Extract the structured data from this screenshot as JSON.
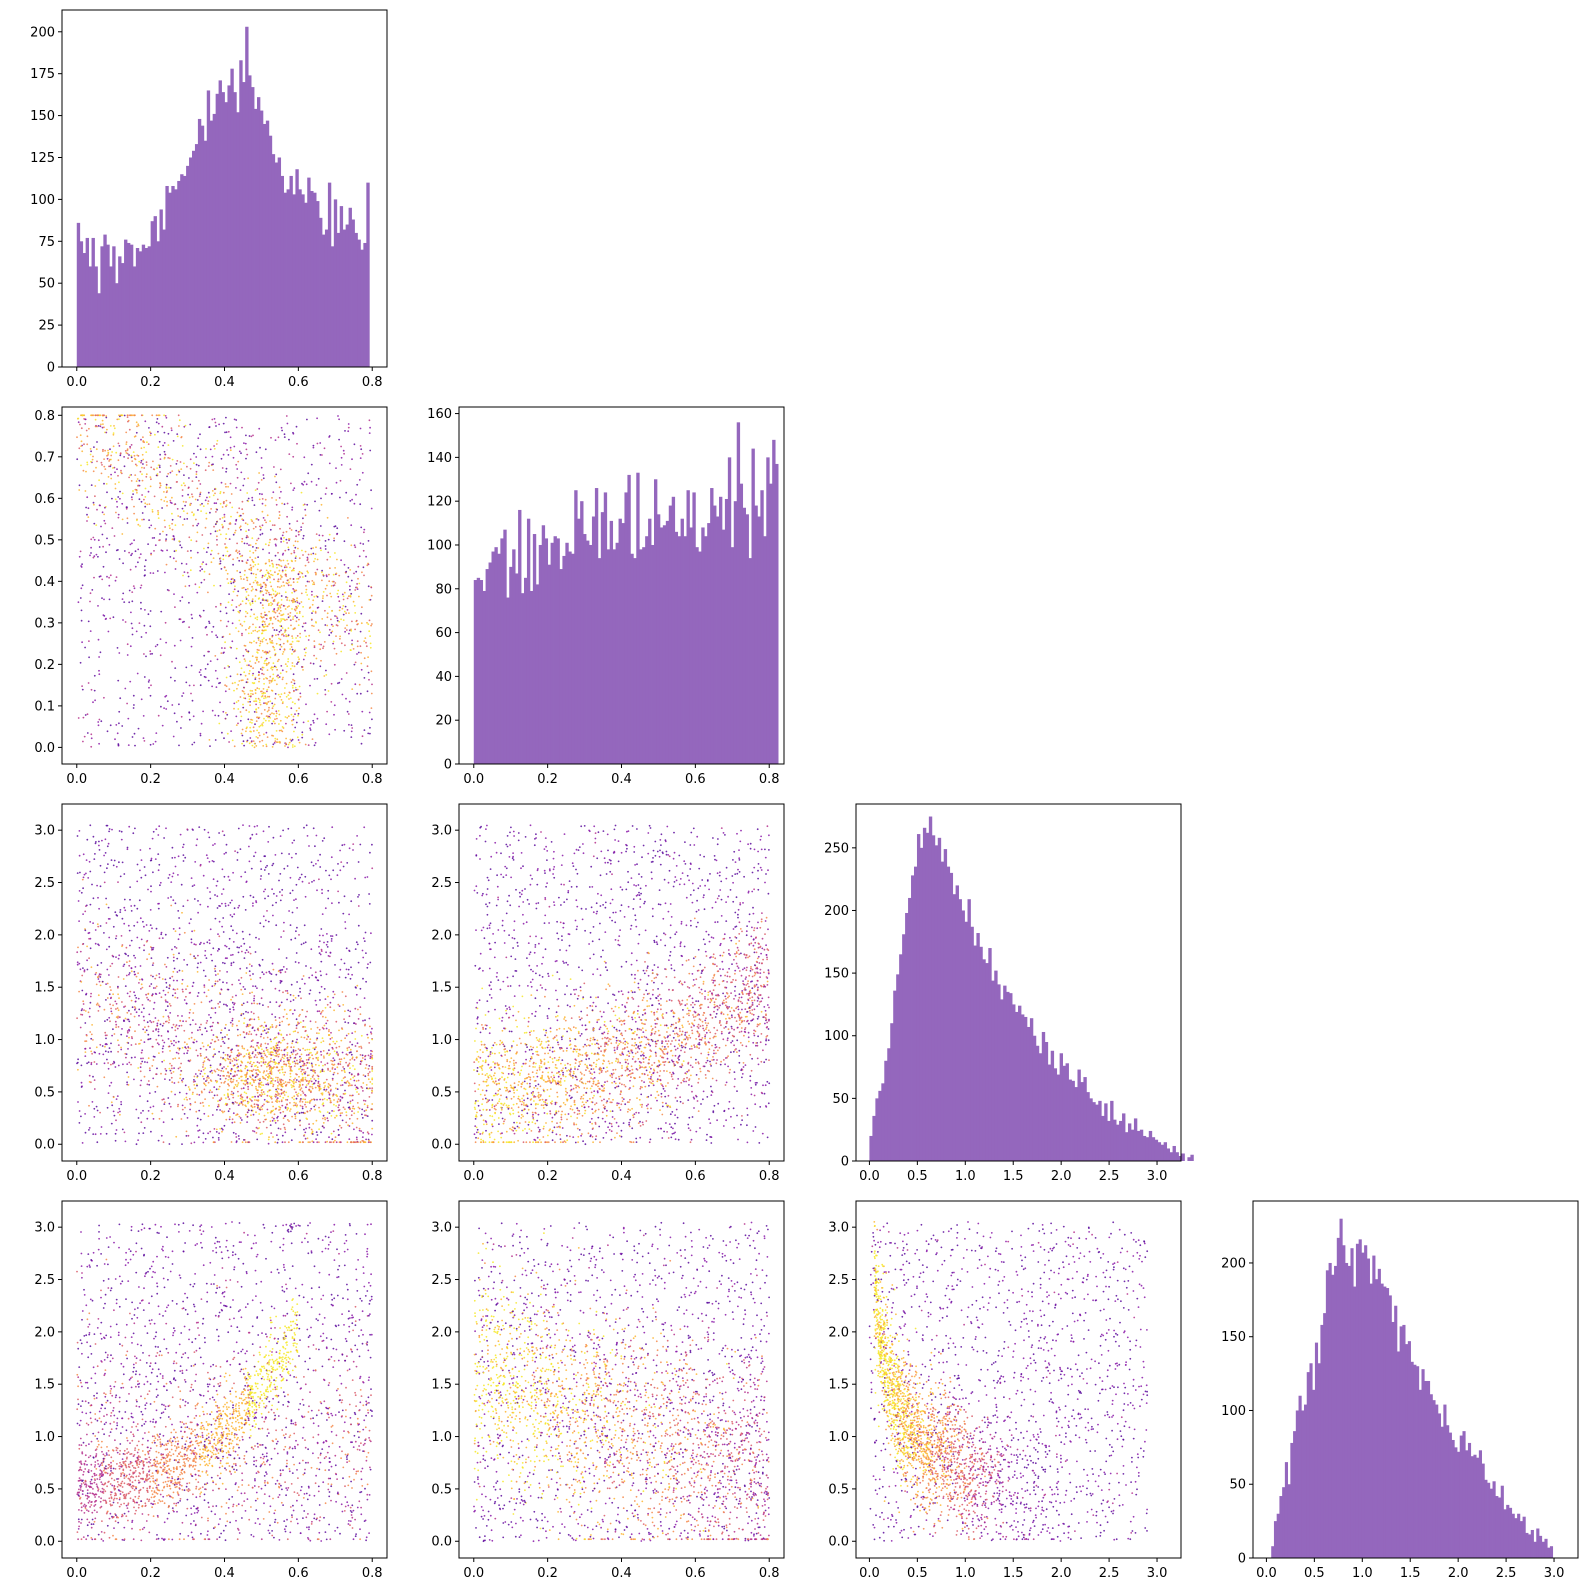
{
  "colors": {
    "hist_fill": "#9467bd",
    "scatter_cmap": [
      "#5b0a9c",
      "#8a17a8",
      "#b52f8c",
      "#db5c68",
      "#f48849",
      "#fdb42f",
      "#f6e826"
    ],
    "frame": "#000000"
  },
  "chart_data": [
    {
      "id": "hist-0",
      "row": 0,
      "col": 0,
      "type": "bar",
      "title": "",
      "xlabel": "",
      "ylabel": "",
      "xlim": [
        -0.04,
        0.84
      ],
      "ylim": [
        0,
        213
      ],
      "xticks": [
        "0.0",
        "0.2",
        "0.4",
        "0.6",
        "0.8"
      ],
      "yticks": [
        "0",
        "25",
        "50",
        "75",
        "100",
        "125",
        "150",
        "175",
        "200"
      ],
      "bins": {
        "start": 0.0,
        "width": 0.008
      },
      "values": [
        86,
        75,
        68,
        77,
        60,
        77,
        60,
        44,
        72,
        79,
        73,
        60,
        72,
        50,
        66,
        62,
        76,
        74,
        73,
        60,
        71,
        69,
        73,
        71,
        72,
        87,
        90,
        75,
        94,
        82,
        108,
        104,
        108,
        106,
        111,
        115,
        114,
        120,
        125,
        129,
        133,
        148,
        144,
        135,
        165,
        147,
        151,
        163,
        171,
        164,
        158,
        168,
        178,
        164,
        152,
        183,
        170,
        203,
        174,
        167,
        154,
        161,
        153,
        145,
        147,
        138,
        127,
        122,
        125,
        114,
        104,
        106,
        114,
        103,
        118,
        106,
        103,
        98,
        113,
        105,
        104,
        99,
        89,
        79,
        82,
        110,
        72,
        100,
        80,
        96,
        82,
        85,
        95,
        88,
        80,
        76,
        70,
        74,
        110
      ]
    },
    {
      "id": "scatter-1-0",
      "row": 1,
      "col": 0,
      "type": "scatter",
      "xlim": [
        -0.04,
        0.84
      ],
      "ylim": [
        -0.04,
        0.82
      ],
      "xticks": [
        "0.0",
        "0.2",
        "0.4",
        "0.6",
        "0.8"
      ],
      "yticks": [
        "0.0",
        "0.1",
        "0.2",
        "0.3",
        "0.4",
        "0.5",
        "0.6",
        "0.7",
        "0.8"
      ],
      "n_points": 2600,
      "pattern": {
        "x": "param0",
        "y": "param1",
        "dense_band": "y ≈ 0.76 − 0.6·x with vertical cluster near x≈0.48–0.56, y<0.4"
      }
    },
    {
      "id": "hist-1",
      "row": 1,
      "col": 1,
      "type": "bar",
      "xlim": [
        -0.04,
        0.84
      ],
      "ylim": [
        0,
        163
      ],
      "xticks": [
        "0.0",
        "0.2",
        "0.4",
        "0.6",
        "0.8"
      ],
      "yticks": [
        "0",
        "20",
        "40",
        "60",
        "80",
        "100",
        "120",
        "140",
        "160"
      ],
      "bins": {
        "start": 0.0,
        "width": 0.008
      },
      "values": [
        84,
        85,
        84,
        79,
        89,
        92,
        97,
        99,
        96,
        103,
        107,
        76,
        90,
        98,
        87,
        116,
        78,
        85,
        112,
        79,
        105,
        82,
        100,
        109,
        103,
        91,
        101,
        104,
        103,
        89,
        95,
        101,
        97,
        96,
        125,
        112,
        120,
        105,
        102,
        100,
        113,
        126,
        94,
        115,
        124,
        98,
        111,
        98,
        101,
        112,
        110,
        124,
        132,
        96,
        94,
        133,
        98,
        99,
        104,
        112,
        100,
        130,
        114,
        108,
        109,
        111,
        118,
        122,
        106,
        104,
        112,
        104,
        125,
        108,
        124,
        99,
        97,
        108,
        104,
        110,
        126,
        118,
        113,
        122,
        107,
        121,
        140,
        99,
        120,
        156,
        128,
        117,
        114,
        94,
        144,
        118,
        113,
        125,
        104,
        140,
        128,
        148,
        137
      ]
    },
    {
      "id": "scatter-2-0",
      "row": 2,
      "col": 0,
      "type": "scatter",
      "xlim": [
        -0.04,
        0.84
      ],
      "ylim": [
        -0.16,
        3.25
      ],
      "xticks": [
        "0.0",
        "0.2",
        "0.4",
        "0.6",
        "0.8"
      ],
      "yticks": [
        "0.0",
        "0.5",
        "1.0",
        "1.5",
        "2.0",
        "2.5",
        "3.0"
      ],
      "n_points": 3200,
      "pattern": {
        "x": "param0",
        "y": "param2",
        "dense_cluster": "x≈0.55, y≈0.6"
      }
    },
    {
      "id": "scatter-2-1",
      "row": 2,
      "col": 1,
      "type": "scatter",
      "xlim": [
        -0.04,
        0.84
      ],
      "ylim": [
        -0.16,
        3.25
      ],
      "xticks": [
        "0.0",
        "0.2",
        "0.4",
        "0.6",
        "0.8"
      ],
      "yticks": [
        "0.0",
        "0.5",
        "1.0",
        "1.5",
        "2.0",
        "2.5",
        "3.0"
      ],
      "n_points": 3200,
      "pattern": {
        "x": "param1",
        "y": "param2",
        "dense_band": "y rises from ≈0.55 at x=0 to ≈1.6 at x=0.8"
      }
    },
    {
      "id": "hist-2",
      "row": 2,
      "col": 2,
      "type": "bar",
      "xlim": [
        -0.14,
        3.25
      ],
      "ylim": [
        0,
        285
      ],
      "xticks": [
        "0.0",
        "0.5",
        "1.0",
        "1.5",
        "2.0",
        "2.5",
        "3.0"
      ],
      "yticks": [
        "0",
        "50",
        "100",
        "150",
        "200",
        "250"
      ],
      "bins": {
        "start": 0.0,
        "width": 0.031
      },
      "values": [
        20,
        36,
        50,
        56,
        62,
        80,
        90,
        110,
        136,
        149,
        165,
        181,
        198,
        210,
        228,
        235,
        261,
        250,
        266,
        262,
        275,
        260,
        252,
        258,
        239,
        249,
        235,
        230,
        213,
        220,
        209,
        200,
        191,
        209,
        187,
        172,
        182,
        171,
        161,
        158,
        170,
        144,
        152,
        141,
        129,
        140,
        135,
        134,
        125,
        119,
        124,
        117,
        115,
        107,
        114,
        100,
        92,
        86,
        103,
        95,
        77,
        88,
        74,
        69,
        86,
        76,
        78,
        65,
        64,
        59,
        73,
        63,
        67,
        55,
        50,
        47,
        45,
        48,
        36,
        46,
        32,
        48,
        33,
        29,
        32,
        38,
        23,
        30,
        25,
        34,
        24,
        25,
        20,
        19,
        24,
        19,
        17,
        15,
        13,
        15,
        10,
        7,
        12,
        7,
        4,
        6,
        0,
        3,
        5
      ]
    },
    {
      "id": "scatter-3-0",
      "row": 3,
      "col": 0,
      "type": "scatter",
      "xlim": [
        -0.04,
        0.84
      ],
      "ylim": [
        -0.16,
        3.25
      ],
      "xticks": [
        "0.0",
        "0.2",
        "0.4",
        "0.6",
        "0.8"
      ],
      "yticks": [
        "0.0",
        "0.5",
        "1.0",
        "1.5",
        "2.0",
        "2.5",
        "3.0"
      ],
      "n_points": 3200,
      "pattern": {
        "x": "param0",
        "y": "param3",
        "dense_band": "curve from (0, 0.55) rising to (0.58, 2.6)"
      }
    },
    {
      "id": "scatter-3-1",
      "row": 3,
      "col": 1,
      "type": "scatter",
      "xlim": [
        -0.04,
        0.84
      ],
      "ylim": [
        -0.16,
        3.25
      ],
      "xticks": [
        "0.0",
        "0.2",
        "0.4",
        "0.6",
        "0.8"
      ],
      "yticks": [
        "0.0",
        "0.5",
        "1.0",
        "1.5",
        "2.0",
        "2.5",
        "3.0"
      ],
      "n_points": 3200,
      "pattern": {
        "x": "param1",
        "y": "param3",
        "dense_band": "y falls from ≈1.6 at x=0.1 to ≈0.6 at x=0.8"
      }
    },
    {
      "id": "scatter-3-2",
      "row": 3,
      "col": 2,
      "type": "scatter",
      "xlim": [
        -0.14,
        3.25
      ],
      "ylim": [
        -0.16,
        3.25
      ],
      "xticks": [
        "0.0",
        "0.5",
        "1.0",
        "1.5",
        "2.0",
        "2.5",
        "3.0"
      ],
      "yticks": [
        "0.0",
        "0.5",
        "1.0",
        "1.5",
        "2.0",
        "2.5",
        "3.0"
      ],
      "n_points": 3200,
      "pattern": {
        "x": "param2",
        "y": "param3",
        "dense_band": "hyperbola y ≈ 0.9/x, yellow near x≈0.3–0.6"
      }
    },
    {
      "id": "hist-3",
      "row": 3,
      "col": 3,
      "type": "bar",
      "xlim": [
        -0.14,
        3.25
      ],
      "ylim": [
        0,
        242
      ],
      "xticks": [
        "0.0",
        "0.5",
        "1.0",
        "1.5",
        "2.0",
        "2.5",
        "3.0"
      ],
      "yticks": [
        "0",
        "50",
        "100",
        "150",
        "200"
      ],
      "bins": {
        "start": 0.05,
        "width": 0.0285
      },
      "values": [
        8,
        25,
        30,
        42,
        48,
        65,
        50,
        78,
        86,
        100,
        110,
        100,
        104,
        126,
        132,
        114,
        146,
        132,
        158,
        166,
        195,
        200,
        192,
        198,
        217,
        230,
        212,
        200,
        198,
        210,
        184,
        213,
        216,
        207,
        212,
        203,
        186,
        205,
        189,
        196,
        186,
        184,
        183,
        178,
        160,
        171,
        140,
        157,
        158,
        145,
        147,
        133,
        131,
        130,
        114,
        128,
        120,
        120,
        111,
        107,
        104,
        98,
        89,
        104,
        90,
        85,
        80,
        75,
        72,
        83,
        86,
        73,
        78,
        69,
        70,
        68,
        73,
        64,
        53,
        51,
        47,
        52,
        42,
        41,
        49,
        33,
        36,
        34,
        30,
        27,
        30,
        25,
        28,
        17,
        16,
        19,
        11,
        20,
        15,
        11,
        13,
        7,
        8
      ]
    }
  ]
}
